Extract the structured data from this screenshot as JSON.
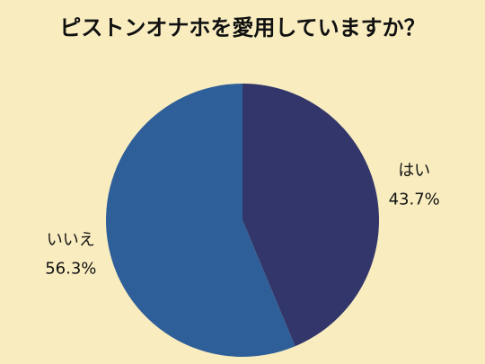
{
  "chart_data": {
    "type": "pie",
    "title": "ピストンオナホを愛用していますか？",
    "categories": [
      "はい",
      "いいえ"
    ],
    "values": [
      43.7,
      56.3
    ],
    "value_labels": [
      "43.7%",
      "56.3%"
    ],
    "colors": [
      "#32366a",
      "#2f5f98"
    ]
  }
}
